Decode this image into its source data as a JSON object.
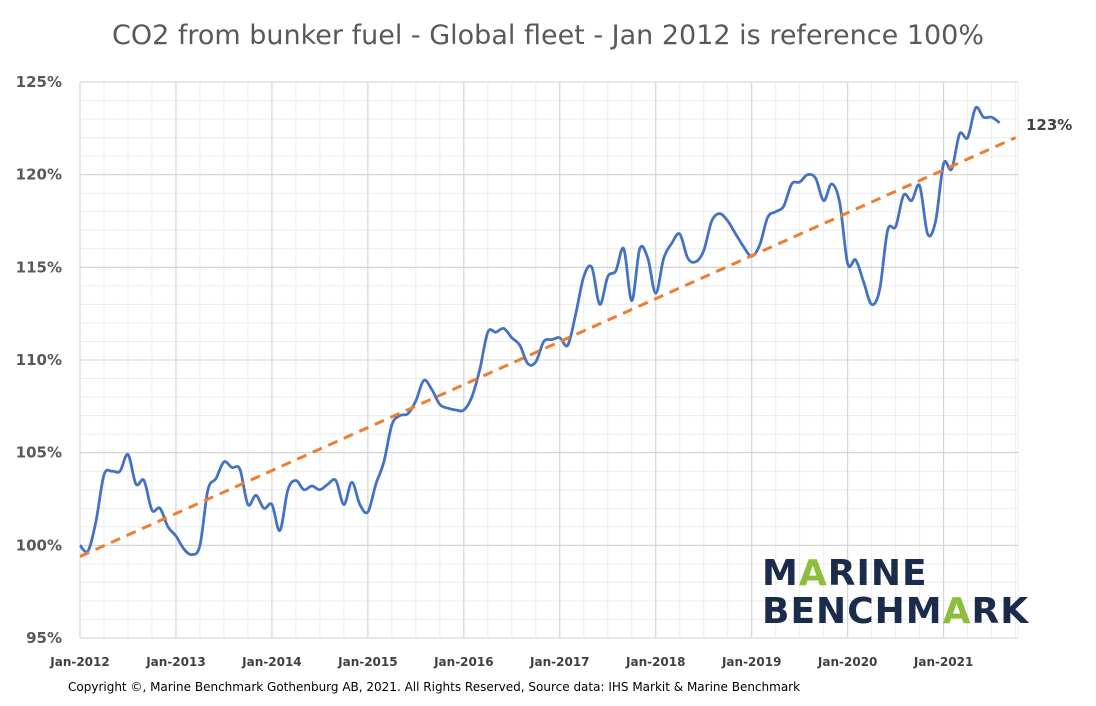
{
  "chart_data": {
    "type": "line",
    "title": "CO2 from bunker fuel - Global fleet - Jan 2012 is reference 100%",
    "xlabel": "",
    "ylabel": "",
    "ylim": [
      95,
      125
    ],
    "yticks": [
      "95%",
      "100%",
      "105%",
      "110%",
      "115%",
      "120%",
      "125%"
    ],
    "ytick_values": [
      95,
      100,
      105,
      110,
      115,
      120,
      125
    ],
    "xticks": [
      "Jan-2012",
      "Jan-2013",
      "Jan-2014",
      "Jan-2015",
      "Jan-2016",
      "Jan-2017",
      "Jan-2018",
      "Jan-2019",
      "Jan-2020",
      "Jan-2021"
    ],
    "grid": true,
    "series": [
      {
        "line_color": "#4472c4",
        "x_start": "Jan-2012",
        "x_step": "1 month",
        "values": [
          100.0,
          99.7,
          101.3,
          103.8,
          104.0,
          104.0,
          104.9,
          103.3,
          103.5,
          101.9,
          102.0,
          101.0,
          100.5,
          99.8,
          99.5,
          100.0,
          103.0,
          103.6,
          104.5,
          104.2,
          104.1,
          102.2,
          102.7,
          102.0,
          102.2,
          100.8,
          103.0,
          103.5,
          103.0,
          103.2,
          103.0,
          103.3,
          103.5,
          102.2,
          103.4,
          102.2,
          101.8,
          103.3,
          104.5,
          106.5,
          107.0,
          107.1,
          107.8,
          108.9,
          108.4,
          107.6,
          107.4,
          107.3,
          107.3,
          108.0,
          109.5,
          111.5,
          111.5,
          111.7,
          111.2,
          110.8,
          109.8,
          109.9,
          111.0,
          111.1,
          111.2,
          110.8,
          112.5,
          114.5,
          115.0,
          113.0,
          114.5,
          114.8,
          116.0,
          113.2,
          116.0,
          115.5,
          113.6,
          115.5,
          116.3,
          116.8,
          115.5,
          115.3,
          115.9,
          117.5,
          117.9,
          117.5,
          116.8,
          116.1,
          115.6,
          116.2,
          117.7,
          118.0,
          118.3,
          119.5,
          119.6,
          120.0,
          119.8,
          118.6,
          119.5,
          118.5,
          115.2,
          115.4,
          114.2,
          113.0,
          113.8,
          117.0,
          117.2,
          118.9,
          118.6,
          119.4,
          116.8,
          117.5,
          120.6,
          120.3,
          122.2,
          122.0,
          123.6,
          123.1,
          123.1,
          122.8
        ]
      },
      {
        "line_color": "#ed7d31",
        "line_style": "dashed",
        "type": "linear trend",
        "x": [
          "Jan-2012",
          "Sep-2021"
        ],
        "values": [
          99.4,
          122.0
        ]
      }
    ],
    "annotations": [
      {
        "text": "123%",
        "anchor": "end of series"
      }
    ]
  },
  "footer": {
    "copyright": "Copyright ©, Marine Benchmark Gothenburg AB, 2021. All Rights Reserved, Source data: IHS Markit & Marine Benchmark"
  },
  "logo": {
    "line1": "MARINE",
    "line2": "BENCHMARK",
    "color": "#1a2b4c",
    "accent_color": "#8dbd3a"
  }
}
